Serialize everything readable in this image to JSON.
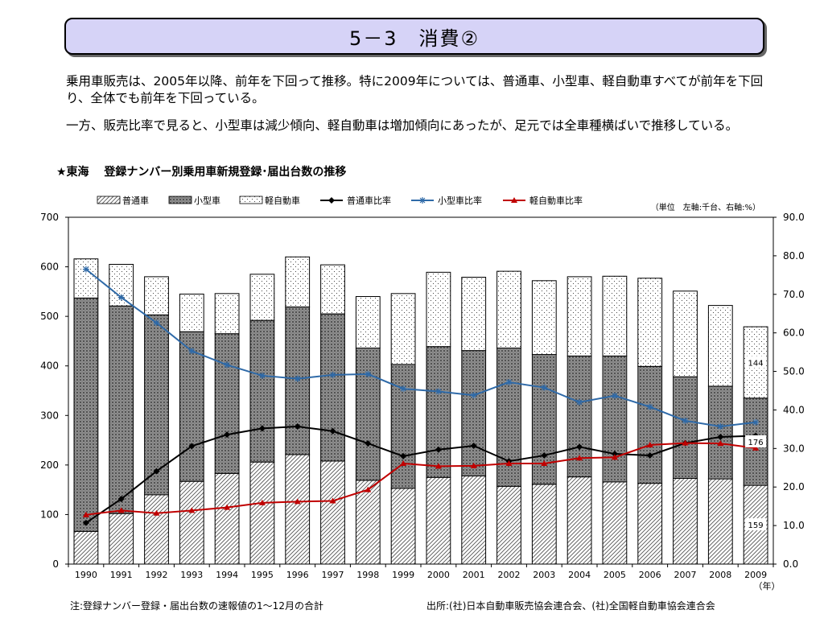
{
  "title": "5－3　消費②",
  "paragraphs": [
    "乗用車販売は、2005年以降、前年を下回って推移。特に2009年については、普通車、小型車、軽自動車すべてが前年を下回り、全体でも前年を下回っている。",
    "一方、販売比率で見ると、小型車は減少傾向、軽自動車は増加傾向にあったが、足元では全車種横ばいで推移している。"
  ],
  "chart_heading": "★東海　 登録ナンバー別乗用車新規登録･届出台数の推移",
  "note": "注:登録ナンバー登録・届出台数の速報値の1～12月の合計",
  "source": "出所:(社)日本自動車販売協会連合会、(社)全国軽自動車協会連合会",
  "colors": {
    "title_bg": "#d6d3f7",
    "futsu_ratio": "#000000",
    "kogata_ratio": "#2f6aa8",
    "kei_ratio": "#c00000"
  },
  "chart_data": {
    "type": "bar",
    "stacked": true,
    "unit_note": "（単位　左軸:千台、右軸:%）",
    "x_unit": "（年）",
    "categories": [
      "1990",
      "1991",
      "1992",
      "1993",
      "1994",
      "1995",
      "1996",
      "1997",
      "1998",
      "1999",
      "2000",
      "2001",
      "2002",
      "2003",
      "2004",
      "2005",
      "2006",
      "2007",
      "2008",
      "2009"
    ],
    "left_axis": {
      "min": 0,
      "max": 700,
      "step": 100,
      "ticks": [
        "0",
        "100",
        "200",
        "300",
        "400",
        "500",
        "600",
        "700"
      ]
    },
    "right_axis": {
      "min": 0,
      "max": 90,
      "step": 10,
      "ticks": [
        "0.0",
        "10.0",
        "20.0",
        "30.0",
        "40.0",
        "50.0",
        "60.0",
        "70.0",
        "80.0",
        "90.0"
      ]
    },
    "bar_series": [
      {
        "name": "普通車",
        "pattern": "futsu",
        "axis": "left",
        "values": [
          66,
          102,
          140,
          167,
          183,
          206,
          221,
          208,
          169,
          153,
          175,
          178,
          157,
          161,
          176,
          166,
          163,
          173,
          172,
          159
        ]
      },
      {
        "name": "小型車",
        "pattern": "kogata",
        "axis": "left",
        "values": [
          471,
          419,
          363,
          302,
          282,
          286,
          298,
          297,
          267,
          250,
          264,
          253,
          279,
          262,
          244,
          254,
          236,
          205,
          187,
          176
        ]
      },
      {
        "name": "軽自動車",
        "pattern": "kei",
        "axis": "left",
        "values": [
          79,
          84,
          77,
          76,
          81,
          93,
          101,
          99,
          104,
          143,
          150,
          148,
          155,
          149,
          160,
          161,
          178,
          173,
          163,
          144
        ]
      }
    ],
    "line_series": [
      {
        "name": "普通車比率",
        "marker": "diamond",
        "color": "#000000",
        "axis": "right",
        "values": [
          10.7,
          16.9,
          24.1,
          30.6,
          33.6,
          35.2,
          35.7,
          34.5,
          31.3,
          28.0,
          29.7,
          30.7,
          26.7,
          28.2,
          30.4,
          28.6,
          28.2,
          31.4,
          33.0,
          33.3
        ]
      },
      {
        "name": "小型車比率",
        "marker": "asterisk",
        "color": "#2f6aa8",
        "axis": "right",
        "values": [
          76.5,
          69.2,
          62.6,
          55.3,
          51.7,
          48.9,
          48.1,
          49.1,
          49.3,
          45.5,
          44.8,
          43.8,
          47.2,
          45.8,
          42.0,
          43.7,
          40.8,
          37.2,
          35.7,
          36.8
        ]
      },
      {
        "name": "軽自動車比率",
        "marker": "triangle",
        "color": "#c00000",
        "axis": "right",
        "values": [
          12.8,
          13.9,
          13.2,
          13.9,
          14.7,
          15.9,
          16.2,
          16.4,
          19.3,
          26.1,
          25.4,
          25.5,
          26.1,
          26.1,
          27.5,
          27.7,
          30.9,
          31.4,
          31.3,
          30.1
        ]
      }
    ],
    "data_labels": [
      {
        "series": "軽自動車",
        "category": "2009",
        "value": "144"
      },
      {
        "series": "小型車",
        "category": "2009",
        "value": "176"
      },
      {
        "series": "普通車",
        "category": "2009",
        "value": "159"
      }
    ],
    "legend_position": "top",
    "grid": false
  }
}
